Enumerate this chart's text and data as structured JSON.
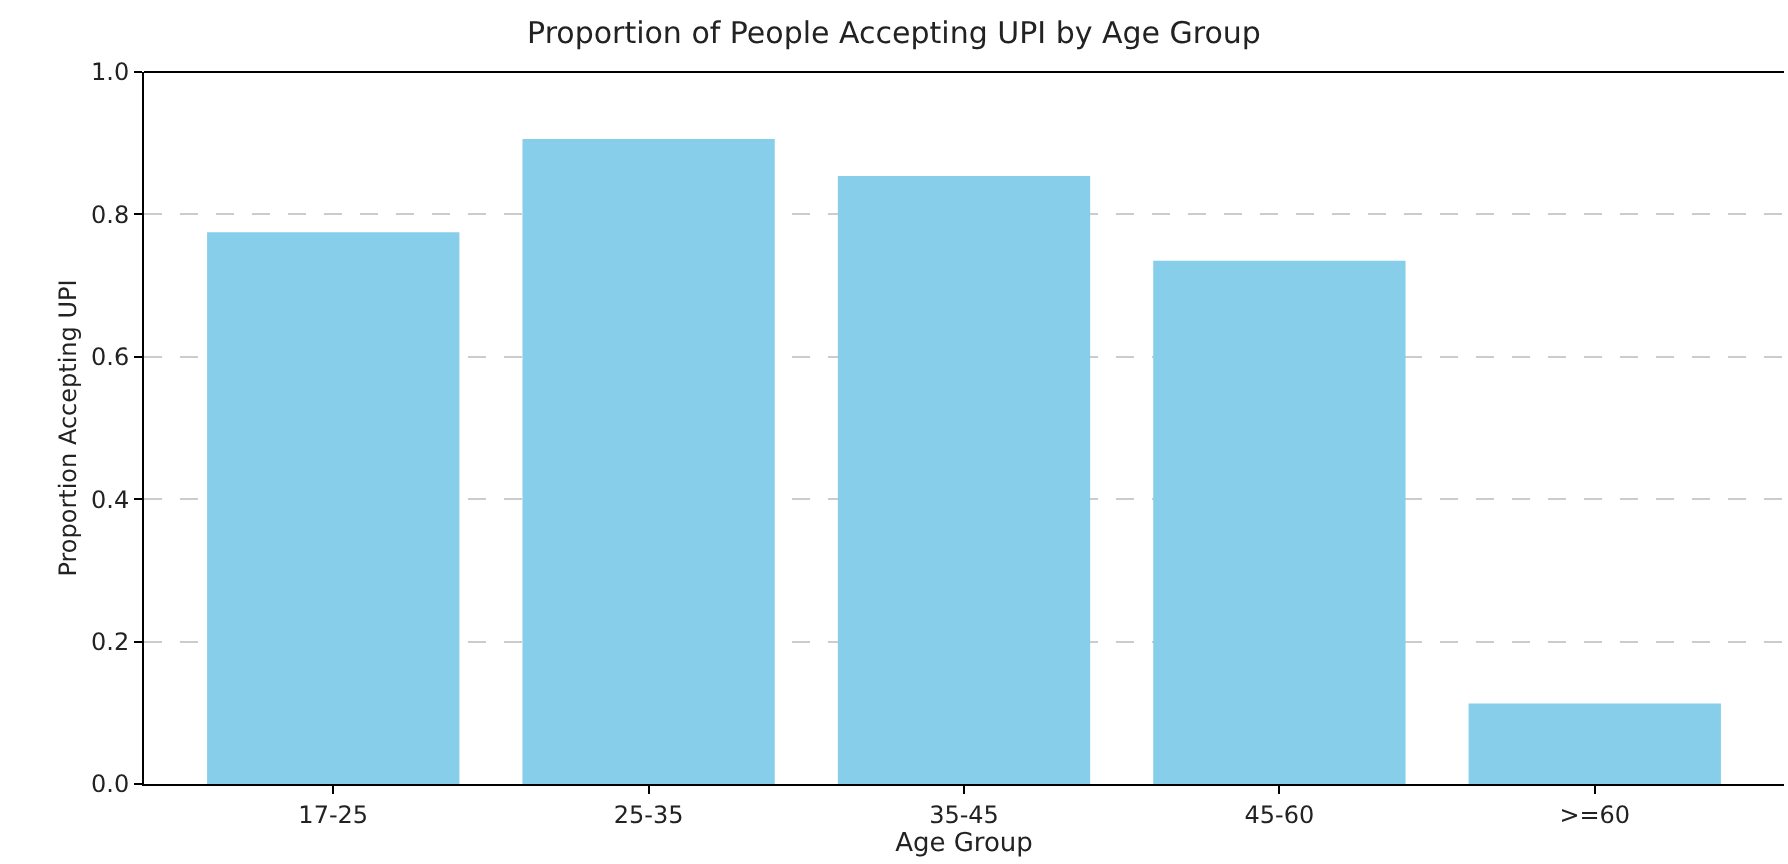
{
  "chart_data": {
    "type": "bar",
    "title": "Proportion of People Accepting UPI by Age Group",
    "xlabel": "Age Group",
    "ylabel": "Proportion Accepting UPI",
    "categories": [
      "17-25",
      "25-35",
      "35-45",
      "45-60",
      ">=60"
    ],
    "values": [
      0.775,
      0.906,
      0.854,
      0.735,
      0.113
    ],
    "color": "#87ceeb",
    "ylim": [
      0,
      1
    ],
    "yticks": [
      {
        "value": 0,
        "label": "0.0"
      },
      {
        "value": 0.2,
        "label": "0.2"
      },
      {
        "value": 0.4,
        "label": "0.4"
      },
      {
        "value": 0.6,
        "label": "0.6"
      },
      {
        "value": 0.8,
        "label": "0.8"
      },
      {
        "value": 1,
        "label": "1.0"
      }
    ],
    "grid": "y"
  }
}
